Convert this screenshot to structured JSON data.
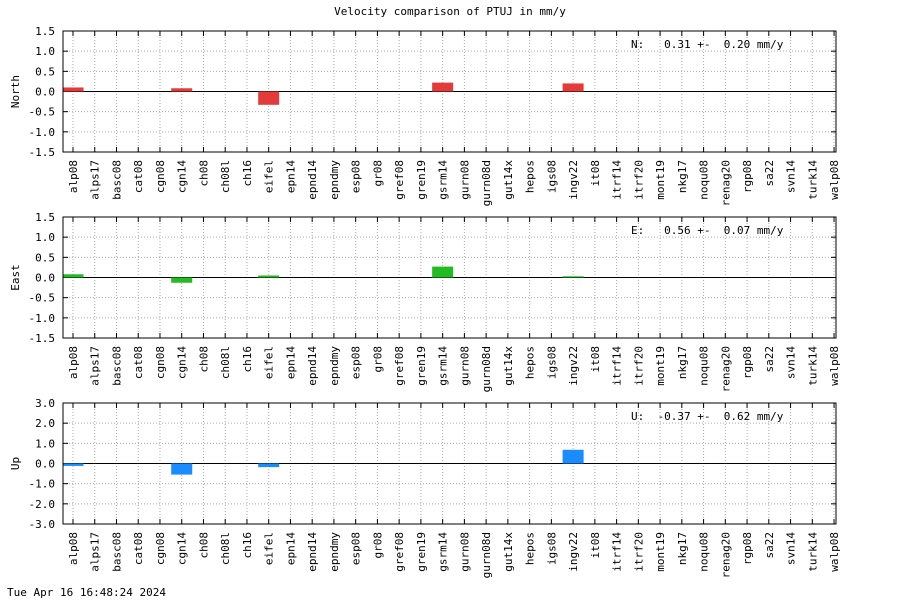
{
  "page": {
    "title": "Velocity comparison of PTUJ in mm/y",
    "timestamp": "Tue Apr 16 16:48:24 2024"
  },
  "chart_data": [
    {
      "type": "bar",
      "ylabel": "North",
      "ylim": [
        -1.5,
        1.5
      ],
      "yticks": [
        "1.5",
        "1.0",
        "0.5",
        "0.0",
        "-0.5",
        "-1.0",
        "-1.5"
      ],
      "color": "#e53a3a",
      "annotation": "N:   0.31 +-  0.20 mm/y",
      "grid": true,
      "categories": [
        "alp08",
        "alps17",
        "basc08",
        "cat08",
        "cgn08",
        "cgn14",
        "ch08",
        "ch08l",
        "ch16",
        "eifel",
        "epn14",
        "epnd14",
        "epndmy",
        "esp08",
        "gr08",
        "gref08",
        "gren19",
        "gsrm14",
        "gurn08",
        "gurn08d",
        "gut14x",
        "hepos",
        "igs08",
        "ingv22",
        "it08",
        "itrf14",
        "itrf20",
        "mont19",
        "nkg17",
        "noqu08",
        "renag20",
        "rgp08",
        "sa22",
        "svn14",
        "turk14",
        "walp08"
      ],
      "values": [
        0.1,
        0,
        0,
        0,
        0,
        0.08,
        0,
        0,
        0,
        -0.33,
        0,
        0,
        0,
        0,
        0,
        0,
        0,
        0.22,
        0,
        0,
        0,
        0,
        0,
        0.2,
        0,
        0,
        0,
        0,
        0,
        0,
        0,
        0,
        0,
        0,
        0,
        0
      ]
    },
    {
      "type": "bar",
      "ylabel": "East",
      "ylim": [
        -1.5,
        1.5
      ],
      "yticks": [
        "1.5",
        "1.0",
        "0.5",
        "0.0",
        "-0.5",
        "-1.0",
        "-1.5"
      ],
      "color": "#22bb22",
      "annotation": "E:   0.56 +-  0.07 mm/y",
      "grid": true,
      "categories": [
        "alp08",
        "alps17",
        "basc08",
        "cat08",
        "cgn08",
        "cgn14",
        "ch08",
        "ch08l",
        "ch16",
        "eifel",
        "epn14",
        "epnd14",
        "epndmy",
        "esp08",
        "gr08",
        "gref08",
        "gren19",
        "gsrm14",
        "gurn08",
        "gurn08d",
        "gut14x",
        "hepos",
        "igs08",
        "ingv22",
        "it08",
        "itrf14",
        "itrf20",
        "mont19",
        "nkg17",
        "noqu08",
        "renag20",
        "rgp08",
        "sa22",
        "svn14",
        "turk14",
        "walp08"
      ],
      "values": [
        0.08,
        0,
        0,
        0,
        0,
        -0.13,
        0,
        0,
        0,
        0.05,
        0,
        0,
        0,
        0,
        0,
        0,
        0,
        0.27,
        0,
        0,
        0,
        0,
        0,
        0.03,
        0,
        0,
        0,
        0,
        0,
        0,
        0,
        0,
        0,
        0,
        0,
        0
      ]
    },
    {
      "type": "bar",
      "ylabel": "Up",
      "ylim": [
        -3.0,
        3.0
      ],
      "yticks": [
        "3.0",
        "2.0",
        "1.0",
        "0.0",
        "-1.0",
        "-2.0",
        "-3.0"
      ],
      "color": "#1a8cff",
      "annotation": "U:  -0.37 +-  0.62 mm/y",
      "grid": true,
      "categories": [
        "alp08",
        "alps17",
        "basc08",
        "cat08",
        "cgn08",
        "cgn14",
        "ch08",
        "ch08l",
        "ch16",
        "eifel",
        "epn14",
        "epnd14",
        "epndmy",
        "esp08",
        "gr08",
        "gref08",
        "gren19",
        "gsrm14",
        "gurn08",
        "gurn08d",
        "gut14x",
        "hepos",
        "igs08",
        "ingv22",
        "it08",
        "itrf14",
        "itrf20",
        "mont19",
        "nkg17",
        "noqu08",
        "renag20",
        "rgp08",
        "sa22",
        "svn14",
        "turk14",
        "walp08"
      ],
      "values": [
        -0.12,
        0,
        0,
        0,
        0,
        -0.55,
        0,
        0,
        0,
        -0.18,
        0,
        0,
        0,
        0,
        0,
        0,
        0,
        0,
        0,
        0,
        0,
        0,
        0,
        0.68,
        0,
        0,
        0,
        0,
        0,
        0,
        0,
        0,
        0,
        0,
        0,
        0
      ]
    }
  ]
}
